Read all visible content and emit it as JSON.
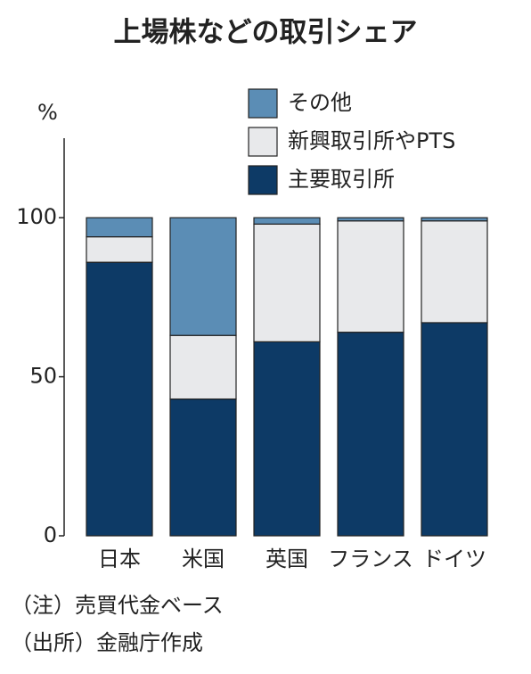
{
  "chart_data": {
    "type": "stacked_bar",
    "title": "上場株などの取引シェア",
    "y_label": "%",
    "categories": [
      "日本",
      "米国",
      "英国",
      "フランス",
      "ドイツ"
    ],
    "series": [
      {
        "name": "主要取引所",
        "color": "#0d3a66",
        "values": [
          86,
          43,
          61,
          64,
          67
        ]
      },
      {
        "name": "新興取引所やPTS",
        "color": "#e8e9eb",
        "values": [
          8,
          20,
          37,
          35,
          32
        ]
      },
      {
        "name": "その他",
        "color": "#5b8db5",
        "values": [
          6,
          37,
          2,
          1,
          1
        ]
      }
    ],
    "ylim": [
      0,
      125
    ],
    "yticks": [
      0,
      50,
      100
    ],
    "notes": [
      "（注）売買代金ベース",
      "（出所）金融庁作成"
    ]
  }
}
